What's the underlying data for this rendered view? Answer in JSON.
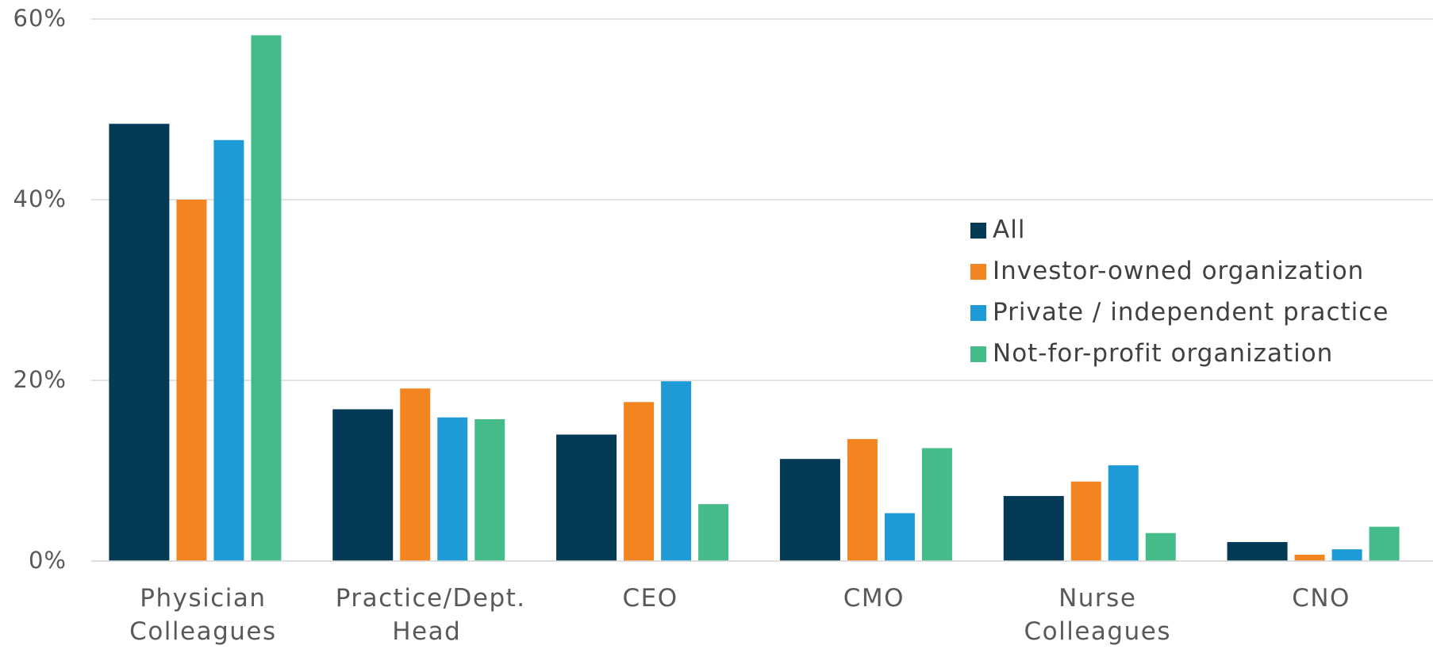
{
  "chart_data": {
    "type": "bar",
    "categories": [
      "Physician Colleagues",
      "Practice/Dept. Head",
      "CEO",
      "CMO",
      "Nurse Colleagues",
      "CNO"
    ],
    "series": [
      {
        "name": "All",
        "color": "#053a57",
        "values": [
          48.4,
          16.8,
          14.0,
          11.3,
          7.2,
          2.1
        ]
      },
      {
        "name": "Investor-owned organization",
        "color": "#f38520",
        "values": [
          40.0,
          19.1,
          17.6,
          13.5,
          8.8,
          0.7
        ]
      },
      {
        "name": "Private / independent practice",
        "color": "#1e9bd7",
        "values": [
          46.6,
          15.9,
          19.9,
          5.3,
          10.6,
          1.3
        ]
      },
      {
        "name": "Not-for-profit organization",
        "color": "#45bb89",
        "values": [
          58.2,
          15.7,
          6.3,
          12.5,
          3.1,
          3.8
        ]
      }
    ],
    "ylim": [
      0,
      60
    ],
    "yticks": [
      {
        "value": 0,
        "label": "0%"
      },
      {
        "value": 20,
        "label": "20%"
      },
      {
        "value": 40,
        "label": "40%"
      },
      {
        "value": 60,
        "label": "60%"
      }
    ],
    "grid": true,
    "legend": "right"
  }
}
